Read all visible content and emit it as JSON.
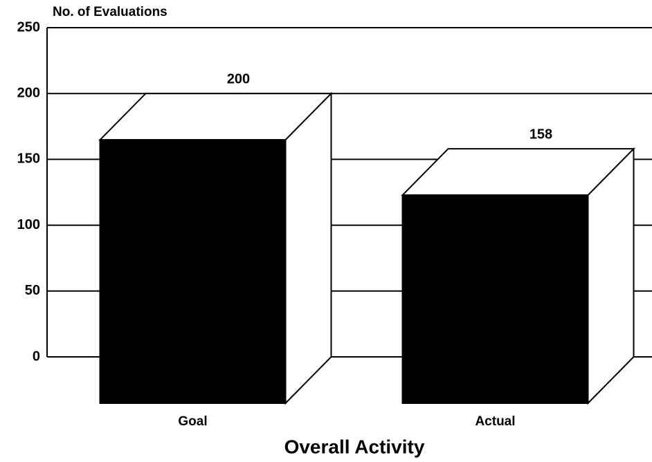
{
  "chart_data": {
    "type": "bar3d",
    "ylabel": "No. of Evaluations",
    "xlabel": "Overall Activity",
    "categories": [
      "Goal",
      "Actual"
    ],
    "values": [
      200,
      158
    ],
    "color": "#000000",
    "ylim": [
      0,
      250
    ],
    "yticks": [
      0,
      50,
      100,
      150,
      200,
      250
    ],
    "grid": true
  }
}
